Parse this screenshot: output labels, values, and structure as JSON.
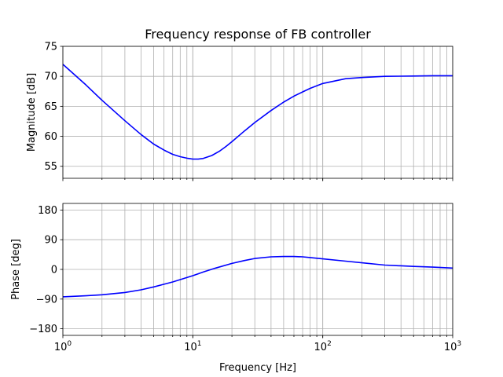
{
  "chart_data": [
    {
      "type": "line",
      "title": "Frequency response of FB controller",
      "xlabel": "",
      "ylabel": "Magnitude [dB]",
      "xscale": "log",
      "xlim": [
        1,
        1000
      ],
      "ylim": [
        53,
        75
      ],
      "yticks": [
        55,
        60,
        65,
        70,
        75
      ],
      "grid": "on (major and minor on x)",
      "series": [
        {
          "color": "#0000ff",
          "x": [
            1,
            1.5,
            2,
            3,
            4,
            5,
            6,
            7,
            8,
            9,
            10,
            11,
            12,
            14,
            16,
            18,
            20,
            25,
            30,
            40,
            50,
            60,
            70,
            80,
            100,
            150,
            200,
            300,
            500,
            700,
            1000
          ],
          "y": [
            72.0,
            68.6,
            66.0,
            62.6,
            60.3,
            58.7,
            57.7,
            57.0,
            56.6,
            56.35,
            56.2,
            56.2,
            56.3,
            56.8,
            57.5,
            58.3,
            59.1,
            60.9,
            62.3,
            64.3,
            65.7,
            66.7,
            67.4,
            68.0,
            68.8,
            69.6,
            69.8,
            70.0,
            70.05,
            70.1,
            70.1
          ]
        }
      ]
    },
    {
      "type": "line",
      "title": "",
      "xlabel": "Frequency [Hz]",
      "ylabel": "Phase [deg]",
      "xscale": "log",
      "xlim": [
        1,
        1000
      ],
      "xticks": [
        "10^0",
        "10^1",
        "10^2",
        "10^3"
      ],
      "ylim": [
        -200,
        200
      ],
      "yticks": [
        -180,
        -90,
        0,
        90,
        180
      ],
      "grid": "on (major and minor on x)",
      "series": [
        {
          "color": "#0000ff",
          "x": [
            1,
            1.5,
            2,
            3,
            4,
            5,
            6,
            7,
            8,
            10,
            12,
            15,
            20,
            25,
            30,
            40,
            50,
            60,
            70,
            80,
            100,
            150,
            200,
            300,
            500,
            700,
            1000
          ],
          "y": [
            -83,
            -80,
            -77,
            -70,
            -62,
            -53,
            -45,
            -38,
            -31,
            -19,
            -8,
            4,
            18,
            27,
            33,
            38,
            39,
            39,
            38,
            36,
            32,
            25,
            20,
            13,
            9,
            7,
            4
          ]
        }
      ]
    }
  ],
  "tick_labels": {
    "x_base": "10",
    "x_exponents": [
      "0",
      "1",
      "2",
      "3"
    ],
    "mag_y": [
      "55",
      "60",
      "65",
      "70",
      "75"
    ],
    "phase_y": [
      "−180",
      "−90",
      "0",
      "90",
      "180"
    ]
  }
}
